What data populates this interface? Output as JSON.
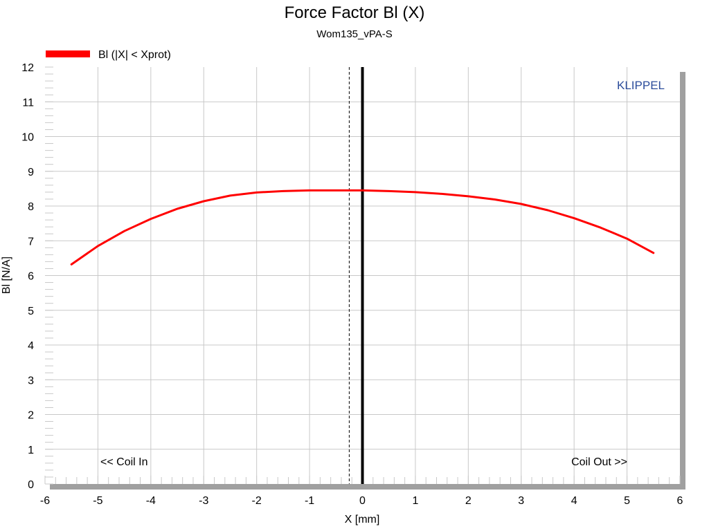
{
  "chart_data": {
    "type": "line",
    "title": "Force Factor Bl (X)",
    "subtitle": "Wom135_vPA-S",
    "xlabel": "X [mm]",
    "ylabel": "Bl [N/A]",
    "xlim": [
      -6,
      6
    ],
    "ylim": [
      0,
      12
    ],
    "x_ticks": [
      "-6",
      "-5",
      "-4",
      "-3",
      "-2",
      "-1",
      "0",
      "1",
      "2",
      "3",
      "4",
      "5",
      "6"
    ],
    "y_ticks": [
      "0",
      "1",
      "2",
      "3",
      "4",
      "5",
      "6",
      "7",
      "8",
      "9",
      "10",
      "11",
      "12"
    ],
    "grid": true,
    "legend_position": "top-left",
    "series": [
      {
        "name": "Bl (|X| < Xprot)",
        "color": "#ff0000",
        "x": [
          -5.5,
          -5.0,
          -4.5,
          -4.0,
          -3.5,
          -3.0,
          -2.5,
          -2.0,
          -1.5,
          -1.0,
          -0.5,
          0.0,
          0.5,
          1.0,
          1.5,
          2.0,
          2.5,
          3.0,
          3.5,
          4.0,
          4.5,
          5.0,
          5.5
        ],
        "values": [
          6.32,
          6.85,
          7.28,
          7.63,
          7.92,
          8.14,
          8.3,
          8.39,
          8.43,
          8.45,
          8.45,
          8.45,
          8.43,
          8.4,
          8.35,
          8.28,
          8.19,
          8.06,
          7.88,
          7.65,
          7.38,
          7.06,
          6.65
        ]
      }
    ],
    "vertical_lines": [
      {
        "x": 0,
        "style": "solid",
        "color": "#000000"
      },
      {
        "x": -0.25,
        "style": "dashed",
        "color": "#000000"
      }
    ],
    "annotations": {
      "left": "<< Coil In",
      "right": "Coil Out >>",
      "brand": "KLIPPEL"
    },
    "brand_color": "#2b4c9b"
  }
}
